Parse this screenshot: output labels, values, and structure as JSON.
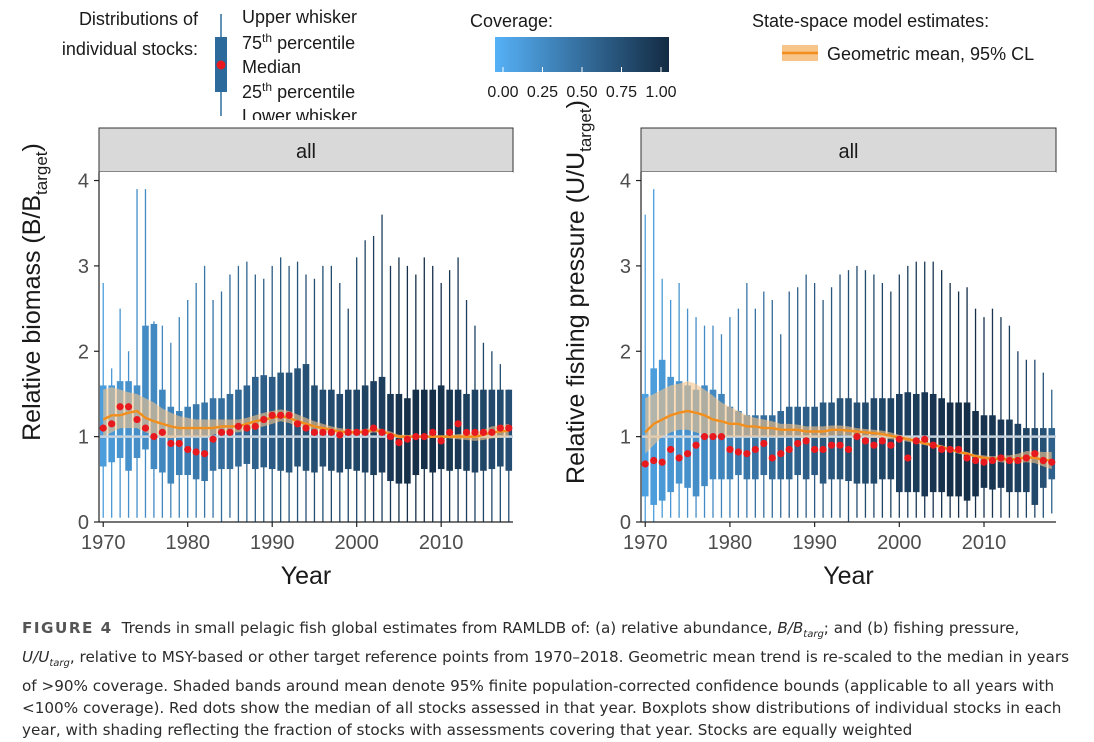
{
  "legend": {
    "boxplot_title_line1": "Distributions of",
    "boxplot_title_line2": "individual stocks:",
    "upper_whisker": "Upper whisker",
    "p75": "75",
    "p75_suffix": "percentile",
    "median": "Median",
    "p25": "25",
    "p25_suffix": "percentile",
    "lower_whisker": "Lower whisker",
    "ordinal": "th",
    "coverage_title": "Coverage:",
    "coverage_ticks": [
      "0.00",
      "0.25",
      "0.50",
      "0.75",
      "1.00"
    ],
    "coverage_colors": [
      "#56B1F7",
      "#132B43"
    ],
    "ssm_title": "State-space model estimates:",
    "ssm_entry": "Geometric mean, 95% CL"
  },
  "colors": {
    "median_dot": "#e8191e",
    "trend_line": "#f28e1c",
    "trend_band": "#f7c48a",
    "reference_line": "#c5d2dd",
    "strip_fill": "#d9d9d9"
  },
  "caption": {
    "label": "FIGURE 4",
    "text": "Trends in small pelagic fish global estimates from RAMLDB of: (a) relative abundance,",
    "b_targ": "B/B",
    "b_targ_sub": "targ",
    "mid": "; and (b) fishing pressure,",
    "u_targ": "U/U",
    "u_targ_sub": "targ",
    "rest": ", relative to MSY-based or other target reference points from 1970–2018. Geometric mean trend is re-scaled to the median in years of >90% coverage. Shaded bands around mean denote 95% finite population-corrected confidence bounds (applicable to all years with <100% coverage). Red dots show the median of all stocks assessed in that year. Boxplots show distributions of individual stocks in each year, with shading reflecting the fraction of stocks with assessments covering that year. Stocks are equally weighted"
  },
  "chart_data": [
    {
      "type": "box",
      "panel": "all",
      "title": "",
      "xlabel": "Year",
      "ylabel": "Relative biomass (B/B",
      "ylabel_sub": "target",
      "ylabel_close": ")",
      "xlim": [
        1969.5,
        2018.5
      ],
      "ylim": [
        0,
        4.1
      ],
      "x_ticks": [
        1970,
        1980,
        1990,
        2000,
        2010
      ],
      "y_ticks": [
        0,
        1,
        2,
        3,
        4
      ],
      "reference_line": 1,
      "years": [
        1970,
        1971,
        1972,
        1973,
        1974,
        1975,
        1976,
        1977,
        1978,
        1979,
        1980,
        1981,
        1982,
        1983,
        1984,
        1985,
        1986,
        1987,
        1988,
        1989,
        1990,
        1991,
        1992,
        1993,
        1994,
        1995,
        1996,
        1997,
        1998,
        1999,
        2000,
        2001,
        2002,
        2003,
        2004,
        2005,
        2006,
        2007,
        2008,
        2009,
        2010,
        2011,
        2012,
        2013,
        2014,
        2015,
        2016,
        2017,
        2018
      ],
      "coverage": [
        0.15,
        0.18,
        0.22,
        0.24,
        0.26,
        0.28,
        0.3,
        0.31,
        0.33,
        0.36,
        0.38,
        0.42,
        0.44,
        0.46,
        0.5,
        0.52,
        0.54,
        0.58,
        0.6,
        0.62,
        0.64,
        0.66,
        0.68,
        0.7,
        0.72,
        0.74,
        0.75,
        0.76,
        0.78,
        0.79,
        0.8,
        0.82,
        0.84,
        0.86,
        0.9,
        0.94,
        0.96,
        0.97,
        0.97,
        0.97,
        0.95,
        0.92,
        0.9,
        0.85,
        0.82,
        0.8,
        0.78,
        0.76,
        0.74
      ],
      "whisker_low": [
        0.05,
        0.05,
        0.05,
        0.05,
        0.05,
        0.05,
        0.05,
        0.05,
        0.05,
        0.05,
        0.05,
        0.05,
        0.05,
        0.05,
        0.0,
        0.05,
        0.0,
        0.0,
        0.0,
        0.0,
        0.0,
        0.0,
        0.0,
        0.0,
        0.0,
        0.0,
        0.0,
        0.0,
        0.0,
        0.0,
        0.0,
        0.0,
        0.0,
        0.0,
        0.0,
        0.0,
        0.0,
        0.0,
        0.0,
        0.0,
        0.0,
        0.0,
        0.0,
        0.0,
        0.0,
        0.0,
        0.0,
        0.0,
        0.0
      ],
      "q1": [
        0.65,
        0.7,
        0.75,
        0.6,
        0.75,
        0.85,
        0.62,
        0.58,
        0.45,
        0.55,
        0.55,
        0.5,
        0.48,
        0.6,
        0.62,
        0.62,
        0.65,
        0.68,
        0.62,
        0.64,
        0.62,
        0.6,
        0.58,
        0.65,
        0.6,
        0.58,
        0.65,
        0.6,
        0.58,
        0.62,
        0.6,
        0.58,
        0.55,
        0.58,
        0.48,
        0.45,
        0.45,
        0.55,
        0.62,
        0.58,
        0.62,
        0.6,
        0.62,
        0.6,
        0.58,
        0.6,
        0.62,
        0.65,
        0.6
      ],
      "median": [
        1.1,
        1.15,
        1.35,
        1.35,
        1.2,
        1.1,
        1.0,
        1.05,
        0.92,
        0.92,
        0.85,
        0.82,
        0.8,
        0.97,
        1.05,
        1.05,
        1.12,
        1.1,
        1.12,
        1.2,
        1.25,
        1.25,
        1.25,
        1.15,
        1.1,
        1.05,
        1.05,
        1.05,
        1.02,
        1.05,
        1.05,
        1.05,
        1.1,
        1.05,
        1.0,
        0.93,
        0.97,
        1.0,
        1.0,
        1.05,
        0.95,
        1.05,
        1.15,
        1.05,
        1.05,
        1.05,
        1.05,
        1.1,
        1.1
      ],
      "q3": [
        1.6,
        1.6,
        1.65,
        1.65,
        1.6,
        2.3,
        2.32,
        1.55,
        1.35,
        1.3,
        1.35,
        1.38,
        1.4,
        1.45,
        1.45,
        1.5,
        1.55,
        1.6,
        1.7,
        1.72,
        1.7,
        1.75,
        1.75,
        1.8,
        1.85,
        1.6,
        1.55,
        1.55,
        1.5,
        1.55,
        1.55,
        1.6,
        1.65,
        1.7,
        1.5,
        1.5,
        1.45,
        1.55,
        1.55,
        1.55,
        1.6,
        1.55,
        1.55,
        1.5,
        1.55,
        1.55,
        1.55,
        1.55,
        1.55
      ],
      "whisker_high": [
        2.8,
        1.8,
        2.5,
        2.0,
        3.9,
        3.9,
        2.35,
        2.3,
        2.1,
        2.4,
        2.6,
        2.8,
        3.0,
        2.6,
        2.7,
        2.9,
        3.0,
        3.05,
        2.9,
        2.85,
        3.0,
        3.1,
        3.0,
        3.05,
        2.9,
        2.85,
        3.0,
        3.0,
        2.8,
        2.5,
        3.1,
        3.3,
        3.35,
        3.6,
        3.0,
        3.1,
        3.0,
        2.9,
        3.1,
        3.0,
        2.8,
        2.95,
        3.1,
        2.6,
        2.3,
        2.1,
        2.0,
        1.85,
        1.55
      ],
      "trend": [
        1.2,
        1.25,
        1.25,
        1.28,
        1.3,
        1.22,
        1.18,
        1.15,
        1.12,
        1.1,
        1.1,
        1.1,
        1.1,
        1.1,
        1.12,
        1.12,
        1.12,
        1.15,
        1.18,
        1.2,
        1.22,
        1.24,
        1.22,
        1.18,
        1.15,
        1.12,
        1.1,
        1.08,
        1.06,
        1.05,
        1.05,
        1.06,
        1.08,
        1.06,
        1.03,
        1.0,
        1.0,
        1.0,
        1.0,
        1.0,
        1.0,
        1.0,
        1.0,
        1.0,
        1.0,
        1.02,
        1.05,
        1.06,
        1.07
      ],
      "trend_low": [
        1.0,
        1.05,
        1.1,
        1.1,
        1.1,
        1.05,
        1.02,
        1.0,
        0.98,
        1.0,
        1.0,
        1.0,
        1.0,
        1.02,
        1.05,
        1.05,
        1.05,
        1.08,
        1.1,
        1.12,
        1.15,
        1.18,
        1.16,
        1.12,
        1.1,
        1.08,
        1.06,
        1.04,
        1.02,
        1.02,
        1.02,
        1.03,
        1.05,
        1.04,
        1.01,
        0.98,
        0.98,
        0.99,
        0.99,
        0.99,
        0.99,
        0.98,
        0.97,
        0.96,
        0.95,
        0.96,
        0.98,
        0.99,
        1.0
      ],
      "trend_high": [
        1.55,
        1.58,
        1.55,
        1.52,
        1.5,
        1.45,
        1.4,
        1.33,
        1.28,
        1.24,
        1.22,
        1.2,
        1.2,
        1.2,
        1.2,
        1.2,
        1.2,
        1.22,
        1.25,
        1.28,
        1.3,
        1.32,
        1.3,
        1.26,
        1.22,
        1.18,
        1.15,
        1.12,
        1.1,
        1.09,
        1.08,
        1.09,
        1.11,
        1.09,
        1.06,
        1.02,
        1.02,
        1.01,
        1.01,
        1.01,
        1.01,
        1.02,
        1.03,
        1.04,
        1.05,
        1.08,
        1.12,
        1.13,
        1.15
      ]
    },
    {
      "type": "box",
      "panel": "all",
      "title": "",
      "xlabel": "Year",
      "ylabel": "Relative fishing pressure (U/U",
      "ylabel_sub": "target",
      "ylabel_close": ")",
      "xlim": [
        1969.5,
        2018.5
      ],
      "ylim": [
        0,
        4.1
      ],
      "x_ticks": [
        1970,
        1980,
        1990,
        2000,
        2010
      ],
      "y_ticks": [
        0,
        1,
        2,
        3,
        4
      ],
      "reference_line": 1,
      "years": [
        1970,
        1971,
        1972,
        1973,
        1974,
        1975,
        1976,
        1977,
        1978,
        1979,
        1980,
        1981,
        1982,
        1983,
        1984,
        1985,
        1986,
        1987,
        1988,
        1989,
        1990,
        1991,
        1992,
        1993,
        1994,
        1995,
        1996,
        1997,
        1998,
        1999,
        2000,
        2001,
        2002,
        2003,
        2004,
        2005,
        2006,
        2007,
        2008,
        2009,
        2010,
        2011,
        2012,
        2013,
        2014,
        2015,
        2016,
        2017,
        2018
      ],
      "coverage": [
        0.12,
        0.15,
        0.18,
        0.2,
        0.22,
        0.24,
        0.26,
        0.28,
        0.3,
        0.33,
        0.36,
        0.4,
        0.44,
        0.46,
        0.5,
        0.52,
        0.55,
        0.58,
        0.6,
        0.62,
        0.64,
        0.66,
        0.68,
        0.7,
        0.72,
        0.74,
        0.76,
        0.78,
        0.8,
        0.82,
        0.84,
        0.86,
        0.88,
        0.9,
        0.93,
        0.95,
        0.97,
        0.97,
        0.97,
        0.96,
        0.94,
        0.92,
        0.9,
        0.87,
        0.84,
        0.82,
        0.78,
        0.72,
        0.6
      ],
      "whisker_low": [
        0.0,
        0.0,
        0.05,
        0.05,
        0.05,
        0.05,
        0.05,
        0.05,
        0.05,
        0.05,
        0.05,
        0.05,
        0.05,
        0.05,
        0.05,
        0.05,
        0.05,
        0.05,
        0.05,
        0.05,
        0.05,
        0.05,
        0.05,
        0.05,
        0.0,
        0.05,
        0.05,
        0.05,
        0.05,
        0.05,
        0.05,
        0.05,
        0.05,
        0.05,
        0.05,
        0.05,
        0.05,
        0.05,
        0.05,
        0.05,
        0.05,
        0.05,
        0.05,
        0.05,
        0.05,
        0.05,
        0.05,
        0.05,
        0.1
      ],
      "q1": [
        0.3,
        0.2,
        0.25,
        0.35,
        0.45,
        0.4,
        0.3,
        0.42,
        0.5,
        0.5,
        0.5,
        0.55,
        0.5,
        0.5,
        0.55,
        0.5,
        0.5,
        0.5,
        0.55,
        0.5,
        0.55,
        0.45,
        0.5,
        0.5,
        0.48,
        0.45,
        0.45,
        0.45,
        0.5,
        0.5,
        0.35,
        0.35,
        0.35,
        0.3,
        0.35,
        0.35,
        0.3,
        0.3,
        0.25,
        0.3,
        0.4,
        0.38,
        0.4,
        0.35,
        0.35,
        0.35,
        0.2,
        0.4,
        0.5
      ],
      "median": [
        0.68,
        0.72,
        0.7,
        0.85,
        0.75,
        0.8,
        0.9,
        1.0,
        1.0,
        1.0,
        0.85,
        0.82,
        0.8,
        0.85,
        0.92,
        0.75,
        0.8,
        0.85,
        0.92,
        0.95,
        0.85,
        0.85,
        0.9,
        0.9,
        0.85,
        1.0,
        0.95,
        0.9,
        0.95,
        0.9,
        0.97,
        0.75,
        0.95,
        0.97,
        0.9,
        0.85,
        0.85,
        0.85,
        0.75,
        0.72,
        0.7,
        0.72,
        0.75,
        0.72,
        0.72,
        0.75,
        0.8,
        0.72,
        0.7
      ],
      "q3": [
        1.5,
        1.8,
        1.9,
        1.7,
        1.65,
        1.6,
        1.55,
        1.6,
        1.55,
        1.5,
        1.35,
        1.3,
        1.25,
        1.25,
        1.25,
        1.25,
        1.3,
        1.35,
        1.35,
        1.35,
        1.35,
        1.4,
        1.4,
        1.45,
        1.45,
        1.4,
        1.4,
        1.45,
        1.45,
        1.45,
        1.5,
        1.52,
        1.5,
        1.52,
        1.5,
        1.45,
        1.4,
        1.4,
        1.4,
        1.3,
        1.25,
        1.25,
        1.2,
        1.2,
        1.15,
        1.1,
        1.1,
        1.1,
        1.1
      ],
      "whisker_high": [
        3.6,
        3.9,
        2.85,
        2.6,
        2.8,
        2.5,
        2.4,
        2.3,
        2.3,
        2.2,
        2.4,
        2.5,
        2.8,
        2.5,
        2.7,
        2.6,
        2.2,
        2.7,
        2.75,
        2.9,
        2.8,
        2.6,
        2.75,
        2.9,
        2.95,
        3.0,
        2.95,
        2.9,
        2.8,
        2.7,
        2.9,
        3.0,
        3.05,
        3.05,
        3.05,
        2.95,
        2.8,
        2.7,
        2.75,
        2.5,
        2.4,
        2.5,
        2.4,
        2.3,
        2.0,
        1.9,
        1.9,
        1.75,
        1.55
      ],
      "trend": [
        1.05,
        1.15,
        1.2,
        1.25,
        1.28,
        1.3,
        1.28,
        1.25,
        1.2,
        1.18,
        1.15,
        1.15,
        1.12,
        1.12,
        1.1,
        1.1,
        1.08,
        1.08,
        1.08,
        1.06,
        1.06,
        1.06,
        1.08,
        1.08,
        1.07,
        1.06,
        1.05,
        1.04,
        1.03,
        1.01,
        0.99,
        0.97,
        0.95,
        0.92,
        0.9,
        0.88,
        0.85,
        0.82,
        0.8,
        0.77,
        0.75,
        0.74,
        0.74,
        0.73,
        0.74,
        0.76,
        0.75,
        0.73,
        0.72
      ],
      "trend_low": [
        0.8,
        0.9,
        1.0,
        1.05,
        1.08,
        1.08,
        1.05,
        1.02,
        1.0,
        1.0,
        1.0,
        1.0,
        1.0,
        1.0,
        1.0,
        1.0,
        1.0,
        1.0,
        1.0,
        0.99,
        0.99,
        0.99,
        1.01,
        1.02,
        1.01,
        1.0,
        1.0,
        0.99,
        0.98,
        0.97,
        0.96,
        0.94,
        0.92,
        0.9,
        0.88,
        0.86,
        0.83,
        0.8,
        0.78,
        0.75,
        0.72,
        0.71,
        0.7,
        0.69,
        0.69,
        0.7,
        0.69,
        0.65,
        0.62
      ],
      "trend_high": [
        1.45,
        1.5,
        1.55,
        1.6,
        1.62,
        1.65,
        1.62,
        1.55,
        1.48,
        1.4,
        1.35,
        1.3,
        1.25,
        1.22,
        1.2,
        1.18,
        1.15,
        1.15,
        1.14,
        1.12,
        1.12,
        1.12,
        1.13,
        1.13,
        1.12,
        1.1,
        1.09,
        1.08,
        1.07,
        1.05,
        1.02,
        1.0,
        0.98,
        0.95,
        0.92,
        0.9,
        0.87,
        0.84,
        0.82,
        0.79,
        0.78,
        0.77,
        0.78,
        0.78,
        0.8,
        0.83,
        0.83,
        0.82,
        0.82
      ]
    }
  ]
}
